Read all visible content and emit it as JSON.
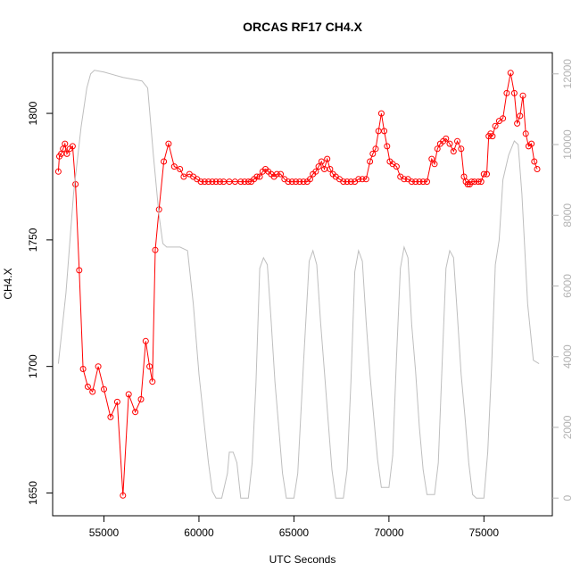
{
  "chart_data": {
    "type": "line",
    "title": "ORCAS RF17 CH4.X",
    "xlabel": "UTC Seconds",
    "ylabel": "CH4.X",
    "xlim": [
      52300,
      78600
    ],
    "ylim": [
      1641,
      1824
    ],
    "y2lim": [
      -500,
      12600
    ],
    "x_ticks": [
      55000,
      60000,
      65000,
      70000,
      75000
    ],
    "y_ticks": [
      1650,
      1700,
      1750,
      1800
    ],
    "y2_ticks": [
      0,
      2000,
      4000,
      6000,
      8000,
      10000,
      12000
    ],
    "grid": false,
    "legend": "none",
    "series": [
      {
        "color": "#ff0000",
        "style": "line+circle-markers",
        "axis": "left",
        "x": [
          52600,
          52650,
          52750,
          52850,
          52950,
          53050,
          53200,
          53350,
          53500,
          53700,
          53900,
          54150,
          54400,
          54700,
          55000,
          55350,
          55700,
          56000,
          56300,
          56650,
          56950,
          57200,
          57400,
          57550,
          57700,
          57900,
          58150,
          58400,
          58700,
          59000,
          59200,
          59500,
          59700,
          59900,
          60100,
          60300,
          60500,
          60700,
          60900,
          61100,
          61300,
          61600,
          61900,
          62200,
          62400,
          62600,
          62750,
          62900,
          63050,
          63200,
          63350,
          63500,
          63650,
          63800,
          63950,
          64100,
          64300,
          64500,
          64700,
          64900,
          65100,
          65300,
          65500,
          65700,
          65850,
          66000,
          66150,
          66300,
          66450,
          66600,
          66750,
          66900,
          67050,
          67200,
          67400,
          67600,
          67800,
          68000,
          68200,
          68400,
          68600,
          68800,
          69000,
          69150,
          69300,
          69450,
          69600,
          69750,
          69900,
          70050,
          70200,
          70400,
          70600,
          70800,
          71000,
          71200,
          71400,
          71600,
          71800,
          72000,
          72250,
          72400,
          72550,
          72700,
          72850,
          73000,
          73200,
          73400,
          73600,
          73800,
          73950,
          74050,
          74150,
          74250,
          74350,
          74500,
          74700,
          74850,
          75000,
          75150,
          75250,
          75350,
          75450,
          75600,
          75800,
          76000,
          76200,
          76400,
          76600,
          76750,
          76900,
          77050,
          77200,
          77350,
          77500,
          77650,
          77800
        ],
        "y": [
          1777,
          1783,
          1784,
          1786,
          1788,
          1784,
          1786,
          1787,
          1772,
          1738,
          1699,
          1692,
          1690,
          1700,
          1691,
          1680,
          1686,
          1649,
          1689,
          1682,
          1687,
          1710,
          1700,
          1694,
          1746,
          1762,
          1781,
          1788,
          1779,
          1778,
          1775,
          1776,
          1775,
          1774,
          1773,
          1773,
          1773,
          1773,
          1773,
          1773,
          1773,
          1773,
          1773,
          1773,
          1773,
          1773,
          1773,
          1774,
          1775,
          1775,
          1777,
          1778,
          1777,
          1776,
          1775,
          1776,
          1776,
          1774,
          1773,
          1773,
          1773,
          1773,
          1773,
          1773,
          1774,
          1776,
          1777,
          1779,
          1781,
          1778,
          1782,
          1778,
          1776,
          1775,
          1774,
          1773,
          1773,
          1773,
          1773,
          1774,
          1774,
          1774,
          1781,
          1784,
          1786,
          1793,
          1800,
          1793,
          1787,
          1781,
          1780,
          1779,
          1775,
          1774,
          1774,
          1773,
          1773,
          1773,
          1773,
          1773,
          1782,
          1780,
          1786,
          1788,
          1789,
          1790,
          1788,
          1785,
          1789,
          1786,
          1775,
          1773,
          1772,
          1772,
          1773,
          1773,
          1773,
          1773,
          1776,
          1776,
          1791,
          1792,
          1791,
          1795,
          1797,
          1798,
          1808,
          1816,
          1808,
          1796,
          1799,
          1807,
          1792,
          1787,
          1788,
          1781,
          1778
        ]
      },
      {
        "color": "#bebebe",
        "style": "line",
        "axis": "right",
        "x": [
          52600,
          53000,
          53400,
          53800,
          54100,
          54300,
          54500,
          55000,
          56000,
          57000,
          57300,
          57600,
          57900,
          58100,
          58300,
          59000,
          59400,
          59700,
          60000,
          60300,
          60500,
          60700,
          60900,
          61200,
          61500,
          61600,
          61800,
          62000,
          62200,
          62400,
          62600,
          62800,
          63000,
          63200,
          63400,
          63600,
          63800,
          64000,
          64200,
          64400,
          64600,
          64800,
          65000,
          65200,
          65500,
          65800,
          66000,
          66200,
          66400,
          66600,
          66800,
          67000,
          67200,
          67400,
          67600,
          67800,
          68000,
          68200,
          68400,
          68600,
          68800,
          69000,
          69200,
          69400,
          69600,
          69800,
          70000,
          70200,
          70400,
          70600,
          70800,
          71000,
          71200,
          71400,
          71600,
          71800,
          72000,
          72200,
          72400,
          72600,
          72800,
          73000,
          73200,
          73400,
          73600,
          73800,
          74000,
          74200,
          74400,
          74600,
          74800,
          75000,
          75200,
          75400,
          75600,
          75800,
          76000,
          76300,
          76600,
          76800,
          77000,
          77300,
          77600,
          77900
        ],
        "y": [
          3800,
          5800,
          8600,
          10500,
          11600,
          12000,
          12100,
          12050,
          11900,
          11800,
          11600,
          9700,
          8000,
          7200,
          7100,
          7100,
          7000,
          5500,
          3500,
          2000,
          1000,
          200,
          0,
          0,
          700,
          1300,
          1300,
          1000,
          0,
          0,
          0,
          1000,
          3200,
          6500,
          6800,
          6600,
          5000,
          3300,
          2000,
          700,
          0,
          0,
          0,
          700,
          3800,
          6700,
          7000,
          6600,
          5000,
          3600,
          2200,
          800,
          0,
          0,
          0,
          800,
          3300,
          6400,
          7000,
          6700,
          5000,
          3500,
          2300,
          1100,
          300,
          300,
          300,
          1200,
          4000,
          6500,
          7100,
          6800,
          4900,
          3600,
          2000,
          800,
          100,
          100,
          100,
          1000,
          3800,
          6500,
          7000,
          6800,
          5200,
          3500,
          2300,
          1000,
          100,
          0,
          0,
          0,
          1300,
          3700,
          6600,
          7300,
          9000,
          9700,
          10100,
          10000,
          8600,
          5500,
          3900,
          3800
        ]
      }
    ]
  }
}
